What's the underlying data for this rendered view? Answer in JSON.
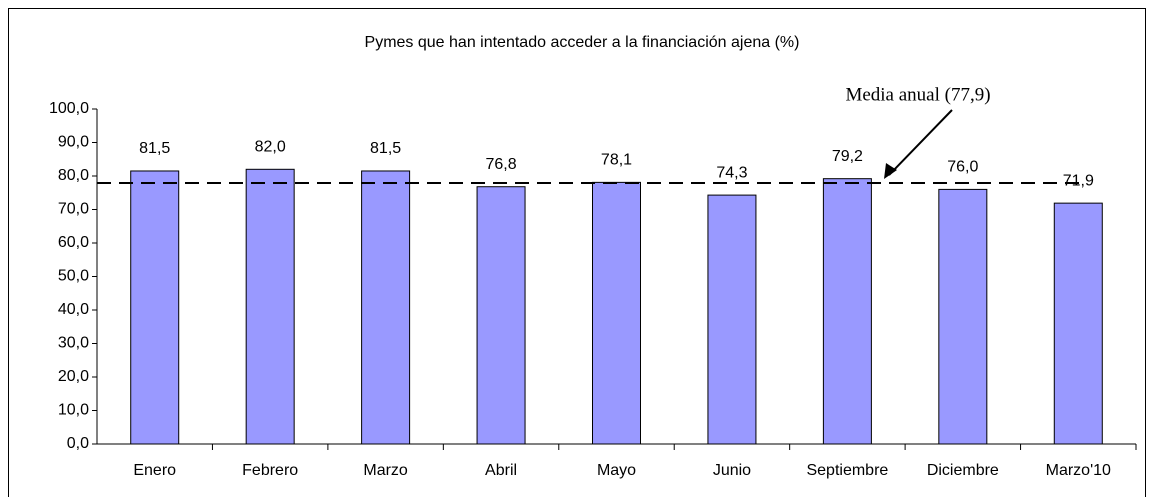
{
  "chart_data": {
    "type": "bar",
    "title": "Pymes que han intentado acceder a la financiación ajena (%)",
    "categories": [
      "Enero",
      "Febrero",
      "Marzo",
      "Abril",
      "Mayo",
      "Junio",
      "Septiembre",
      "Diciembre",
      "Marzo'10"
    ],
    "values": [
      81.5,
      82.0,
      81.5,
      76.8,
      78.1,
      74.3,
      79.2,
      76.0,
      71.9
    ],
    "value_labels": [
      "81,5",
      "82,0",
      "81,5",
      "76,8",
      "78,1",
      "74,3",
      "79,2",
      "76,0",
      "71,9"
    ],
    "color": "#9999ff",
    "ylim": [
      0,
      100
    ],
    "yticks": [
      {
        "value": 0,
        "label": "0,0"
      },
      {
        "value": 10,
        "label": "10,0"
      },
      {
        "value": 20,
        "label": "20,0"
      },
      {
        "value": 30,
        "label": "30,0"
      },
      {
        "value": 40,
        "label": "40,0"
      },
      {
        "value": 50,
        "label": "50,0"
      },
      {
        "value": 60,
        "label": "60,0"
      },
      {
        "value": 70,
        "label": "70,0"
      },
      {
        "value": 80,
        "label": "80,0"
      },
      {
        "value": 90,
        "label": "90,0"
      },
      {
        "value": 100,
        "label": "100,0"
      }
    ],
    "reference_line": {
      "value": 77.9,
      "label": "Media anual (77,9)"
    }
  }
}
